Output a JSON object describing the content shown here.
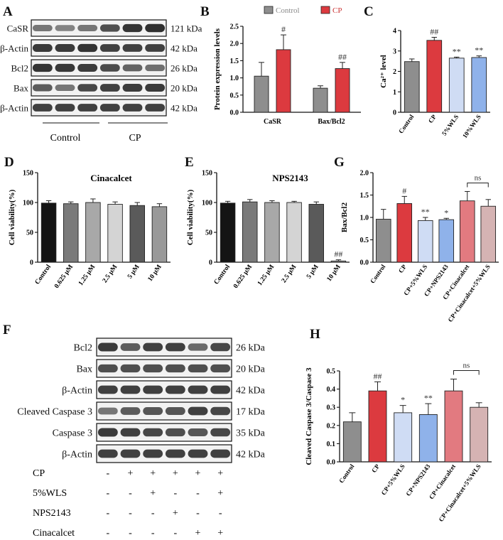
{
  "panels": {
    "A": {
      "letter": "A",
      "bands": [
        {
          "label": "CaSR",
          "size": "121 kDa"
        },
        {
          "label": "β-Actin",
          "size": "42 kDa"
        },
        {
          "label": "Bcl2",
          "size": "26 kDa"
        },
        {
          "label": "Bax",
          "size": "20 kDa"
        },
        {
          "label": "β-Actin",
          "size": "42 kDa"
        }
      ],
      "groups": [
        "Control",
        "CP"
      ]
    },
    "F": {
      "letter": "F",
      "bands": [
        {
          "label": "Bcl2",
          "size": "26 kDa"
        },
        {
          "label": "Bax",
          "size": "20 kDa"
        },
        {
          "label": "β-Actin",
          "size": "42 kDa"
        },
        {
          "label": "Cleaved Caspase 3",
          "size": "17 kDa"
        },
        {
          "label": "Caspase 3",
          "size": "35 kDa"
        },
        {
          "label": "β-Actin",
          "size": "42 kDa"
        }
      ],
      "treatments": [
        {
          "label": "CP",
          "signs": [
            "-",
            "+",
            "+",
            "+",
            "+",
            "+"
          ]
        },
        {
          "label": "5%WLS",
          "signs": [
            "-",
            "-",
            "+",
            "-",
            "-",
            "+"
          ]
        },
        {
          "label": "NPS2143",
          "signs": [
            "-",
            "-",
            "-",
            "+",
            "-",
            "-"
          ]
        },
        {
          "label": "Cinacalcet",
          "signs": [
            "-",
            "-",
            "-",
            "-",
            "+",
            "+"
          ]
        }
      ]
    }
  },
  "colors": {
    "control": "#8e8e8e",
    "cp": "#dc3a3f",
    "light_blue": "#cfdcf4",
    "blue": "#8fb2ea",
    "pink": "#e27a80",
    "mauve": "#d5b3b3"
  },
  "chart_data": [
    {
      "id": "B",
      "letter": "B",
      "type": "bar",
      "ylabel": "Protein expression levels",
      "categories": [
        "CaSR",
        "Bax/Bcl2"
      ],
      "series": [
        {
          "name": "Control",
          "values": [
            1.05,
            0.7
          ],
          "errors": [
            0.4,
            0.07
          ]
        },
        {
          "name": "CP",
          "values": [
            1.82,
            1.27
          ],
          "errors": [
            0.43,
            0.18
          ]
        }
      ],
      "annotations": [
        [
          "",
          "#"
        ],
        [
          "",
          "##"
        ]
      ],
      "ylim": [
        0,
        2.5
      ],
      "yticks": [
        "0.0",
        "0.5",
        "1.0",
        "1.5",
        "2.0",
        "2.5"
      ],
      "legend": "top"
    },
    {
      "id": "C",
      "letter": "C",
      "type": "bar",
      "ylabel": "Ca²⁺ level",
      "categories": [
        "Control",
        "CP",
        "5%WLS",
        "10%WLS"
      ],
      "values": [
        2.48,
        3.52,
        2.65,
        2.68
      ],
      "errors": [
        0.13,
        0.15,
        0.05,
        0.08
      ],
      "annotations": [
        "",
        "##",
        "**",
        "**"
      ],
      "ylim": [
        0,
        4
      ],
      "yticks": [
        "0",
        "1",
        "2",
        "3",
        "4"
      ]
    },
    {
      "id": "D",
      "letter": "D",
      "type": "bar",
      "title": "Cinacalcet",
      "ylabel": "Cell viability(%)",
      "categories": [
        "Control",
        "0.625 μM",
        "1.25 μM",
        "2.5 μM",
        "5 μM",
        "10 μM"
      ],
      "values": [
        99,
        98,
        100,
        97,
        95,
        93
      ],
      "errors": [
        4,
        3,
        6,
        4,
        5,
        5
      ],
      "ylim": [
        0,
        150
      ],
      "yticks": [
        "0",
        "50",
        "100",
        "150"
      ]
    },
    {
      "id": "E",
      "letter": "E",
      "type": "bar",
      "title": "NPS2143",
      "ylabel": "Cell viability(%)",
      "categories": [
        "Control",
        "0.625 μM",
        "1.25 μM",
        "2.5 μM",
        "5 μM",
        "10 μM"
      ],
      "values": [
        99,
        101,
        100,
        100,
        97,
        2
      ],
      "errors": [
        3,
        4,
        3,
        2,
        4,
        2
      ],
      "annotations": [
        "",
        "",
        "",
        "",
        "",
        "##"
      ],
      "ylim": [
        0,
        150
      ],
      "yticks": [
        "0",
        "50",
        "100",
        "150"
      ]
    },
    {
      "id": "G",
      "letter": "G",
      "type": "bar",
      "ylabel": "Bax/Bcl2",
      "categories": [
        "Control",
        "CP",
        "CP+5%WLS",
        "CP+NPS2143",
        "CP+Cinacalcet",
        "CP+Cinacalcet+5%WLS"
      ],
      "values": [
        0.96,
        1.31,
        0.93,
        0.95,
        1.37,
        1.25
      ],
      "errors": [
        0.22,
        0.16,
        0.07,
        0.03,
        0.21,
        0.15
      ],
      "annotations": [
        "",
        "#",
        "**",
        "*",
        "",
        ""
      ],
      "bracket_label": "ns",
      "ylim": [
        0,
        2.0
      ],
      "yticks": [
        "0.0",
        "0.5",
        "1.0",
        "1.5",
        "2.0"
      ]
    },
    {
      "id": "H",
      "letter": "H",
      "type": "bar",
      "ylabel": "Cleaved Caspase 3/Caspase 3",
      "categories": [
        "Control",
        "CP",
        "CP+5%WLS",
        "CP+NPS2143",
        "CP+Cinacalcet",
        "CP+Cinacalcet+5%WLS"
      ],
      "values": [
        0.22,
        0.39,
        0.27,
        0.26,
        0.39,
        0.3
      ],
      "errors": [
        0.05,
        0.05,
        0.04,
        0.06,
        0.065,
        0.025
      ],
      "annotations": [
        "",
        "##",
        "*",
        "**",
        "",
        ""
      ],
      "bracket_label": "ns",
      "ylim": [
        0,
        0.5
      ],
      "yticks": [
        "0.0",
        "0.1",
        "0.2",
        "0.3",
        "0.4",
        "0.5"
      ]
    }
  ]
}
